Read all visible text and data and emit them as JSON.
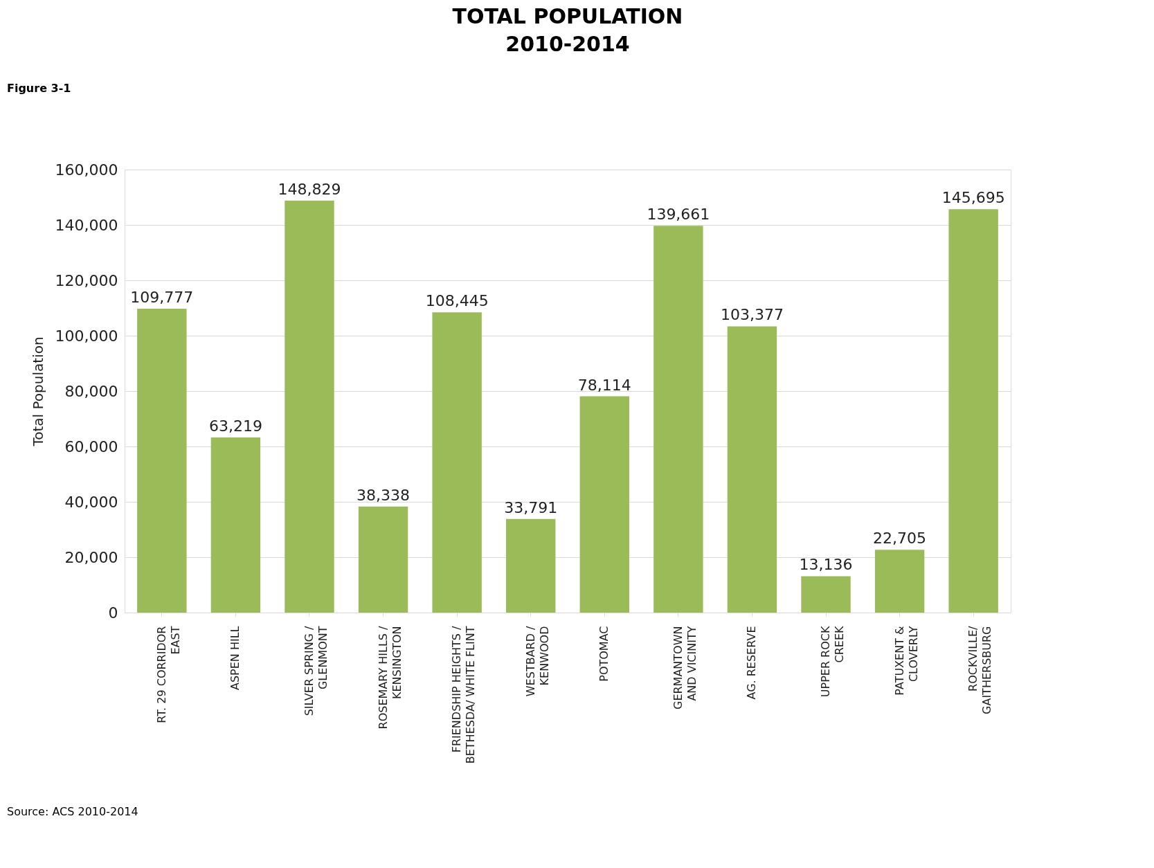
{
  "chart_data": {
    "type": "bar",
    "title": "TOTAL POPULATION\n2010-2014",
    "ylabel": "Total Population",
    "categories": [
      "RT. 29 CORRIDOR\nEAST",
      "ASPEN HILL",
      "SILVER SPRING /\nGLENMONT",
      "ROSEMARY HILLS /\nKENSINGTON",
      "FRIENDSHIP HEIGHTS /\nBETHESDA/ WHITE FLINT",
      "WESTBARD /\nKENWOOD",
      "POTOMAC",
      "GERMANTOWN\nAND VICINITY",
      "AG. RESERVE",
      "UPPER ROCK\nCREEK",
      "PATUXENT &\nCLOVERLY",
      "ROCKVILLE/\nGAITHERSBURG"
    ],
    "values": [
      109777,
      63219,
      148829,
      38338,
      108445,
      33791,
      78114,
      139661,
      103377,
      13136,
      22705,
      145695
    ],
    "color": "#9bbb59",
    "value_labels": [
      "109,777",
      "63,219",
      "148,829",
      "38,338",
      "108,445",
      "33,791",
      "78,114",
      "139,661",
      "103,377",
      "13,136",
      "22,705",
      "145,695"
    ],
    "ylim": [
      0,
      160000
    ],
    "yticks": [
      {
        "value": 0,
        "label": "0"
      },
      {
        "value": 20000,
        "label": "20,000"
      },
      {
        "value": 40000,
        "label": "40,000"
      },
      {
        "value": 60000,
        "label": "60,000"
      },
      {
        "value": 80000,
        "label": "80,000"
      },
      {
        "value": 100000,
        "label": "100,000"
      },
      {
        "value": 120000,
        "label": "120,000"
      },
      {
        "value": 140000,
        "label": "140,000"
      },
      {
        "value": 160000,
        "label": "160,000"
      }
    ],
    "grid": "y",
    "annotations": [
      "Figure 3-1",
      "Source: ACS 2010-2014"
    ]
  }
}
